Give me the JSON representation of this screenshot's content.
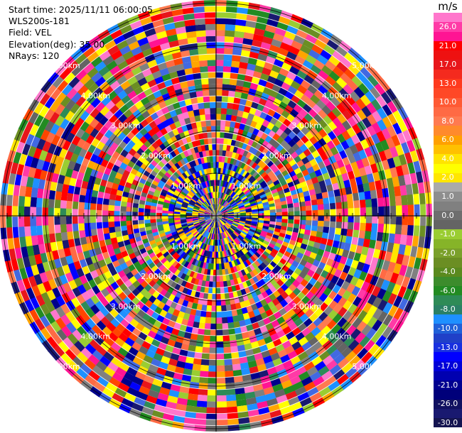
{
  "info": {
    "start_time": "Start time: 2025/11/11 06:00:05",
    "station": "WLS200s-181",
    "field": "Field: VEL",
    "elevation": "Elevation(deg): 35.00",
    "nrays": "NRays: 120"
  },
  "colorbar": {
    "unit": "m/s",
    "bins": [
      {
        "label": "",
        "color": "#ff77cc"
      },
      {
        "label": "26.0",
        "color": "#ff3aa6"
      },
      {
        "label": "",
        "color": "#ff1493"
      },
      {
        "label": "21.0",
        "color": "#ff0000"
      },
      {
        "label": "",
        "color": "#ee1111"
      },
      {
        "label": "17.0",
        "color": "#e8161b"
      },
      {
        "label": "",
        "color": "#f42a1e"
      },
      {
        "label": "13.0",
        "color": "#ff3a1e"
      },
      {
        "label": "",
        "color": "#ff4826"
      },
      {
        "label": "10.0",
        "color": "#ff5a34"
      },
      {
        "label": "",
        "color": "#ff6a44"
      },
      {
        "label": "8.0",
        "color": "#ff7a50"
      },
      {
        "label": "",
        "color": "#ff8a2c"
      },
      {
        "label": "6.0",
        "color": "#ffa000"
      },
      {
        "label": "",
        "color": "#ffc000"
      },
      {
        "label": "4.0",
        "color": "#ffe400"
      },
      {
        "label": "",
        "color": "#ffff00"
      },
      {
        "label": "2.0",
        "color": "#ffe600"
      },
      {
        "label": "",
        "color": "#aaaaaa"
      },
      {
        "label": "1.0",
        "color": "#8e8e8e"
      },
      {
        "label": "",
        "color": "#808080"
      },
      {
        "label": "0.0",
        "color": "#6e6e6e"
      },
      {
        "label": "",
        "color": "#646464"
      },
      {
        "label": "-1.0",
        "color": "#9acd32"
      },
      {
        "label": "",
        "color": "#86b428"
      },
      {
        "label": "-2.0",
        "color": "#7aa02a"
      },
      {
        "label": "",
        "color": "#6b8e23"
      },
      {
        "label": "-4.0",
        "color": "#5a8a1e"
      },
      {
        "label": "",
        "color": "#3c8c2c"
      },
      {
        "label": "-6.0",
        "color": "#228b22"
      },
      {
        "label": "",
        "color": "#2e8b57"
      },
      {
        "label": "-8.0",
        "color": "#2a8066"
      },
      {
        "label": "",
        "color": "#1e90ff"
      },
      {
        "label": "-10.0",
        "color": "#2060d8"
      },
      {
        "label": "",
        "color": "#2040c8"
      },
      {
        "label": "-13.0",
        "color": "#1830e0"
      },
      {
        "label": "",
        "color": "#0000ff"
      },
      {
        "label": "-17.0",
        "color": "#0000d8"
      },
      {
        "label": "",
        "color": "#0000b0"
      },
      {
        "label": "-21.0",
        "color": "#000090"
      },
      {
        "label": "",
        "color": "#00007a"
      },
      {
        "label": "-26.0",
        "color": "#101060"
      },
      {
        "label": "",
        "color": "#191970"
      },
      {
        "label": "-30.0",
        "color": "#141450"
      }
    ]
  },
  "range_labels": [
    "1.00km",
    "2.00km",
    "3.00km",
    "4.00km",
    "5.00km"
  ],
  "palette": [
    "#ff1493",
    "#ff3aa6",
    "#ff0000",
    "#ff4500",
    "#ff7a50",
    "#ffa500",
    "#ffff00",
    "#ffe400",
    "#808080",
    "#646464",
    "#9acd32",
    "#6b8e23",
    "#228b22",
    "#2e8b57",
    "#1e90ff",
    "#4169e1",
    "#0000ff",
    "#00008b",
    "#191970",
    "#ff6a44",
    "#ff77cc",
    "#e8161b"
  ]
}
